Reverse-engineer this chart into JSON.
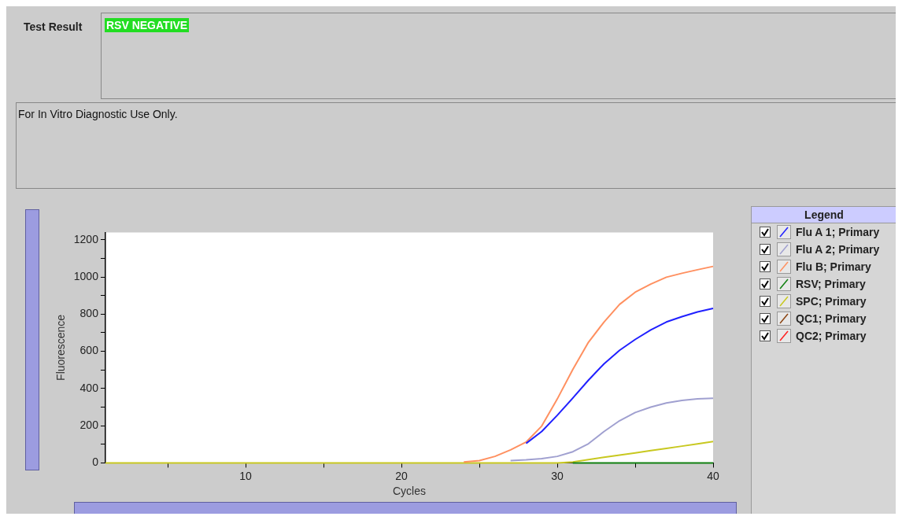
{
  "chart_data": {
    "type": "line",
    "xlabel": "Cycles",
    "ylabel": "Fluorescence",
    "legend_title": "Legend",
    "legend": "right",
    "grid": false,
    "marker": "none",
    "line_style": "solid",
    "annotations": [
      "Test Result",
      "RSV NEGATIVE",
      "For In Vitro Diagnostic Use Only."
    ],
    "x": [
      1,
      2,
      3,
      4,
      5,
      6,
      7,
      8,
      9,
      10,
      11,
      12,
      13,
      14,
      15,
      16,
      17,
      18,
      19,
      20,
      21,
      22,
      23,
      24,
      25,
      26,
      27,
      28,
      29,
      30,
      31,
      32,
      33,
      34,
      35,
      36,
      37,
      38,
      39,
      40
    ],
    "xlim": [
      1,
      40
    ],
    "xticks": [
      {
        "value": 5,
        "label": null
      },
      10,
      {
        "value": 15,
        "label": null
      },
      20,
      {
        "value": 25,
        "label": null
      },
      30,
      {
        "value": 35,
        "label": null
      },
      40
    ],
    "ylim": [
      0,
      1240
    ],
    "yticks": [
      0,
      {
        "value": 100,
        "label": null
      },
      200,
      {
        "value": 300,
        "label": null
      },
      400,
      {
        "value": 500,
        "label": null
      },
      600,
      {
        "value": 700,
        "label": null
      },
      800,
      {
        "value": 900,
        "label": null
      },
      1000,
      {
        "value": 1100,
        "label": null
      },
      1200
    ],
    "series": [
      {
        "name": "Flu A 1; Primary",
        "color": "#2020ff",
        "values": [
          null,
          null,
          null,
          null,
          null,
          null,
          null,
          null,
          null,
          null,
          null,
          null,
          null,
          null,
          null,
          null,
          null,
          null,
          null,
          null,
          null,
          null,
          null,
          null,
          null,
          null,
          null,
          105,
          169,
          256,
          349,
          445,
          533,
          606,
          664,
          715,
          758,
          787,
          812,
          831
        ]
      },
      {
        "name": "Flu A 2; Primary",
        "color": "#a0a0d0",
        "values": [
          null,
          null,
          null,
          null,
          null,
          null,
          null,
          null,
          null,
          null,
          null,
          null,
          null,
          null,
          null,
          null,
          null,
          null,
          null,
          null,
          null,
          null,
          null,
          null,
          null,
          null,
          12,
          16,
          23,
          35,
          60,
          103,
          169,
          227,
          271,
          300,
          322,
          336,
          344,
          348
        ]
      },
      {
        "name": "Flu B; Primary",
        "color": "#ff9060",
        "values": [
          null,
          null,
          null,
          null,
          null,
          null,
          null,
          null,
          null,
          null,
          null,
          null,
          null,
          null,
          null,
          null,
          null,
          null,
          null,
          null,
          null,
          null,
          null,
          5,
          12,
          35,
          70,
          112,
          198,
          344,
          503,
          649,
          758,
          853,
          918,
          962,
          999,
          1020,
          1039,
          1057
        ]
      },
      {
        "name": "RSV; Primary",
        "color": "#108010",
        "values": [
          null,
          null,
          null,
          null,
          null,
          null,
          null,
          null,
          null,
          null,
          null,
          null,
          null,
          null,
          null,
          null,
          null,
          null,
          null,
          null,
          null,
          null,
          null,
          null,
          null,
          null,
          null,
          null,
          null,
          null,
          0,
          0,
          0,
          0,
          0,
          0,
          0,
          0,
          0,
          0
        ]
      },
      {
        "name": "SPC; Primary",
        "color": "#c8c820",
        "values": [
          0,
          0,
          0,
          0,
          0,
          0,
          0,
          0,
          0,
          0,
          0,
          0,
          0,
          0,
          0,
          0,
          0,
          0,
          0,
          0,
          0,
          0,
          0,
          0,
          0,
          0,
          0,
          0,
          0,
          0,
          5,
          18,
          30,
          42,
          54,
          66,
          78,
          90,
          102,
          115
        ]
      },
      {
        "name": "QC1; Primary",
        "color": "#8b4513",
        "values": [
          null,
          null,
          null,
          null,
          null,
          null,
          null,
          null,
          null,
          null,
          null,
          null,
          null,
          null,
          null,
          null,
          null,
          null,
          null,
          null,
          null,
          null,
          null,
          null,
          null,
          null,
          null,
          null,
          null,
          null,
          null,
          null,
          null,
          null,
          null,
          null,
          null,
          null,
          null,
          null
        ]
      },
      {
        "name": "QC2; Primary",
        "color": "#ff2020",
        "values": [
          null,
          null,
          null,
          null,
          null,
          null,
          null,
          null,
          null,
          null,
          null,
          null,
          null,
          null,
          null,
          null,
          null,
          null,
          null,
          null,
          null,
          null,
          null,
          null,
          null,
          null,
          null,
          null,
          null,
          null,
          null,
          null,
          null,
          null,
          null,
          null,
          null,
          null,
          null,
          null
        ]
      }
    ]
  }
}
